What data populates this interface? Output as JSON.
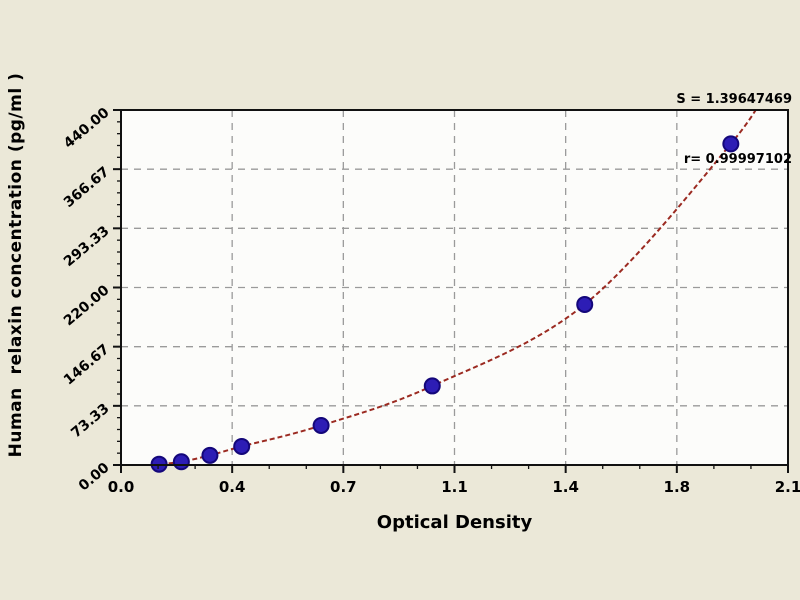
{
  "page": {
    "background_color": "#ebe8d8",
    "plot_background_color": "#fcfcfa"
  },
  "annotations": {
    "line1": "S = 1.39647469",
    "line2": "r= 0.99997102"
  },
  "chart_data": {
    "type": "scatter",
    "title": "",
    "xlabel": "Optical Density",
    "ylabel": "Human  relaxin concentration (pg/ml )",
    "xlim": [
      0,
      2.1
    ],
    "ylim": [
      0,
      440
    ],
    "grid": "dashed",
    "legend": "none",
    "x_major_ticks": [
      0,
      0.35,
      0.7,
      1.05,
      1.4,
      1.75,
      2.1
    ],
    "x_tick_labels": [
      "0.0",
      "0.4",
      "0.7",
      "1.1",
      "1.4",
      "1.8",
      "2.1"
    ],
    "y_major_ticks": [
      0,
      73.33,
      146.67,
      220,
      293.33,
      366.67,
      440
    ],
    "y_tick_labels": [
      "0.00",
      "73.33",
      "146.67",
      "220.00",
      "293.33",
      "366.67",
      "440.00"
    ],
    "points": [
      {
        "x": 0.12,
        "y": 1
      },
      {
        "x": 0.19,
        "y": 4
      },
      {
        "x": 0.28,
        "y": 12
      },
      {
        "x": 0.38,
        "y": 23
      },
      {
        "x": 0.63,
        "y": 49
      },
      {
        "x": 0.98,
        "y": 98
      },
      {
        "x": 1.46,
        "y": 199
      },
      {
        "x": 1.92,
        "y": 398
      }
    ],
    "fit_stats": {
      "S": "1.39647469",
      "r": "0.99997102"
    },
    "colors": {
      "curve": "#9b2a21",
      "point_fill": "#2d1db5",
      "point_stroke": "#14077a",
      "grid": "#9a9a9a",
      "frame": "#111111"
    }
  }
}
